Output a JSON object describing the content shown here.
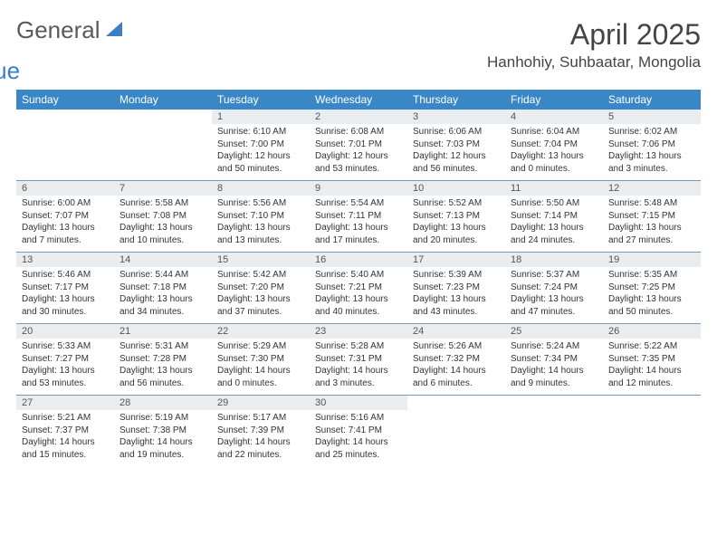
{
  "logo": {
    "text1": "General",
    "text2": "Blue"
  },
  "title": "April 2025",
  "location": "Hanhohiy, Suhbaatar, Mongolia",
  "weekdays": [
    "Sunday",
    "Monday",
    "Tuesday",
    "Wednesday",
    "Thursday",
    "Friday",
    "Saturday"
  ],
  "colors": {
    "header_bg": "#3a87c8",
    "header_text": "#ffffff",
    "daynum_bg": "#e9edef",
    "border": "#7a99b5",
    "logo_gray": "#5a5a5a",
    "logo_blue": "#3a7fc4"
  },
  "weeks": [
    [
      {
        "n": "",
        "sr": "",
        "ss": "",
        "dl": ""
      },
      {
        "n": "",
        "sr": "",
        "ss": "",
        "dl": ""
      },
      {
        "n": "1",
        "sr": "Sunrise: 6:10 AM",
        "ss": "Sunset: 7:00 PM",
        "dl": "Daylight: 12 hours and 50 minutes."
      },
      {
        "n": "2",
        "sr": "Sunrise: 6:08 AM",
        "ss": "Sunset: 7:01 PM",
        "dl": "Daylight: 12 hours and 53 minutes."
      },
      {
        "n": "3",
        "sr": "Sunrise: 6:06 AM",
        "ss": "Sunset: 7:03 PM",
        "dl": "Daylight: 12 hours and 56 minutes."
      },
      {
        "n": "4",
        "sr": "Sunrise: 6:04 AM",
        "ss": "Sunset: 7:04 PM",
        "dl": "Daylight: 13 hours and 0 minutes."
      },
      {
        "n": "5",
        "sr": "Sunrise: 6:02 AM",
        "ss": "Sunset: 7:06 PM",
        "dl": "Daylight: 13 hours and 3 minutes."
      }
    ],
    [
      {
        "n": "6",
        "sr": "Sunrise: 6:00 AM",
        "ss": "Sunset: 7:07 PM",
        "dl": "Daylight: 13 hours and 7 minutes."
      },
      {
        "n": "7",
        "sr": "Sunrise: 5:58 AM",
        "ss": "Sunset: 7:08 PM",
        "dl": "Daylight: 13 hours and 10 minutes."
      },
      {
        "n": "8",
        "sr": "Sunrise: 5:56 AM",
        "ss": "Sunset: 7:10 PM",
        "dl": "Daylight: 13 hours and 13 minutes."
      },
      {
        "n": "9",
        "sr": "Sunrise: 5:54 AM",
        "ss": "Sunset: 7:11 PM",
        "dl": "Daylight: 13 hours and 17 minutes."
      },
      {
        "n": "10",
        "sr": "Sunrise: 5:52 AM",
        "ss": "Sunset: 7:13 PM",
        "dl": "Daylight: 13 hours and 20 minutes."
      },
      {
        "n": "11",
        "sr": "Sunrise: 5:50 AM",
        "ss": "Sunset: 7:14 PM",
        "dl": "Daylight: 13 hours and 24 minutes."
      },
      {
        "n": "12",
        "sr": "Sunrise: 5:48 AM",
        "ss": "Sunset: 7:15 PM",
        "dl": "Daylight: 13 hours and 27 minutes."
      }
    ],
    [
      {
        "n": "13",
        "sr": "Sunrise: 5:46 AM",
        "ss": "Sunset: 7:17 PM",
        "dl": "Daylight: 13 hours and 30 minutes."
      },
      {
        "n": "14",
        "sr": "Sunrise: 5:44 AM",
        "ss": "Sunset: 7:18 PM",
        "dl": "Daylight: 13 hours and 34 minutes."
      },
      {
        "n": "15",
        "sr": "Sunrise: 5:42 AM",
        "ss": "Sunset: 7:20 PM",
        "dl": "Daylight: 13 hours and 37 minutes."
      },
      {
        "n": "16",
        "sr": "Sunrise: 5:40 AM",
        "ss": "Sunset: 7:21 PM",
        "dl": "Daylight: 13 hours and 40 minutes."
      },
      {
        "n": "17",
        "sr": "Sunrise: 5:39 AM",
        "ss": "Sunset: 7:23 PM",
        "dl": "Daylight: 13 hours and 43 minutes."
      },
      {
        "n": "18",
        "sr": "Sunrise: 5:37 AM",
        "ss": "Sunset: 7:24 PM",
        "dl": "Daylight: 13 hours and 47 minutes."
      },
      {
        "n": "19",
        "sr": "Sunrise: 5:35 AM",
        "ss": "Sunset: 7:25 PM",
        "dl": "Daylight: 13 hours and 50 minutes."
      }
    ],
    [
      {
        "n": "20",
        "sr": "Sunrise: 5:33 AM",
        "ss": "Sunset: 7:27 PM",
        "dl": "Daylight: 13 hours and 53 minutes."
      },
      {
        "n": "21",
        "sr": "Sunrise: 5:31 AM",
        "ss": "Sunset: 7:28 PM",
        "dl": "Daylight: 13 hours and 56 minutes."
      },
      {
        "n": "22",
        "sr": "Sunrise: 5:29 AM",
        "ss": "Sunset: 7:30 PM",
        "dl": "Daylight: 14 hours and 0 minutes."
      },
      {
        "n": "23",
        "sr": "Sunrise: 5:28 AM",
        "ss": "Sunset: 7:31 PM",
        "dl": "Daylight: 14 hours and 3 minutes."
      },
      {
        "n": "24",
        "sr": "Sunrise: 5:26 AM",
        "ss": "Sunset: 7:32 PM",
        "dl": "Daylight: 14 hours and 6 minutes."
      },
      {
        "n": "25",
        "sr": "Sunrise: 5:24 AM",
        "ss": "Sunset: 7:34 PM",
        "dl": "Daylight: 14 hours and 9 minutes."
      },
      {
        "n": "26",
        "sr": "Sunrise: 5:22 AM",
        "ss": "Sunset: 7:35 PM",
        "dl": "Daylight: 14 hours and 12 minutes."
      }
    ],
    [
      {
        "n": "27",
        "sr": "Sunrise: 5:21 AM",
        "ss": "Sunset: 7:37 PM",
        "dl": "Daylight: 14 hours and 15 minutes."
      },
      {
        "n": "28",
        "sr": "Sunrise: 5:19 AM",
        "ss": "Sunset: 7:38 PM",
        "dl": "Daylight: 14 hours and 19 minutes."
      },
      {
        "n": "29",
        "sr": "Sunrise: 5:17 AM",
        "ss": "Sunset: 7:39 PM",
        "dl": "Daylight: 14 hours and 22 minutes."
      },
      {
        "n": "30",
        "sr": "Sunrise: 5:16 AM",
        "ss": "Sunset: 7:41 PM",
        "dl": "Daylight: 14 hours and 25 minutes."
      },
      {
        "n": "",
        "sr": "",
        "ss": "",
        "dl": ""
      },
      {
        "n": "",
        "sr": "",
        "ss": "",
        "dl": ""
      },
      {
        "n": "",
        "sr": "",
        "ss": "",
        "dl": ""
      }
    ]
  ]
}
